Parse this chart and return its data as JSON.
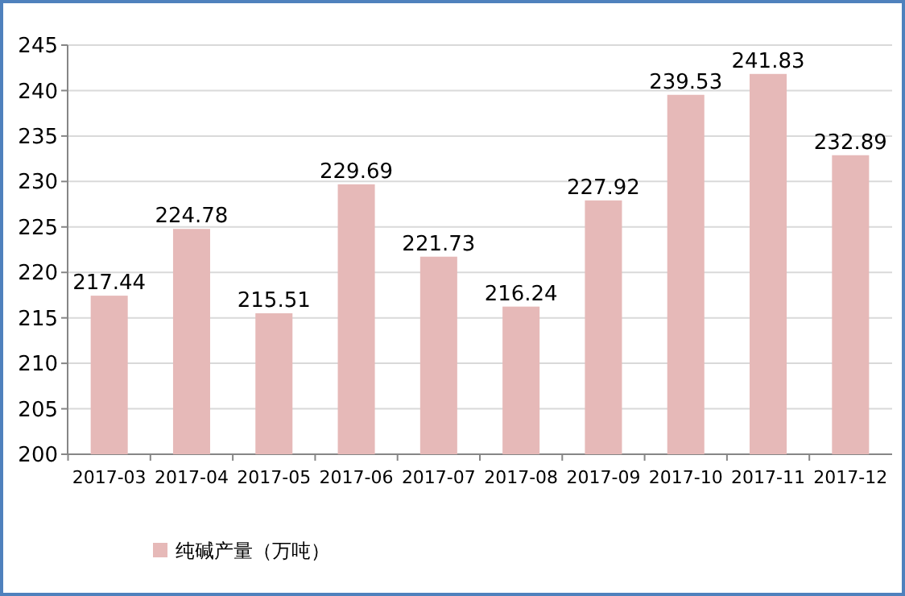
{
  "chart_data": {
    "type": "bar",
    "categories": [
      "2017-03",
      "2017-04",
      "2017-05",
      "2017-06",
      "2017-07",
      "2017-08",
      "2017-09",
      "2017-10",
      "2017-11",
      "2017-12"
    ],
    "series": [
      {
        "name": "纯碱产量（万吨）",
        "color": "#e6b9b8",
        "values": [
          217.44,
          224.78,
          215.51,
          229.69,
          221.73,
          216.24,
          227.92,
          239.53,
          241.83,
          232.89
        ]
      }
    ],
    "ylim": [
      200,
      245
    ],
    "yticks": [
      200,
      205,
      210,
      215,
      220,
      225,
      230,
      235,
      240,
      245
    ],
    "grid": "y",
    "legend": "bottom left",
    "data_labels": true
  }
}
